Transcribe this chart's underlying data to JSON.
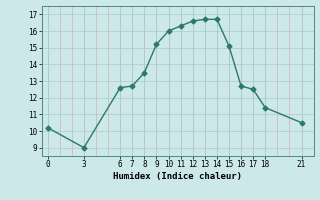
{
  "xlabel": "Humidex (Indice chaleur)",
  "x": [
    0,
    3,
    6,
    7,
    8,
    9,
    10,
    11,
    12,
    13,
    14,
    15,
    16,
    17,
    18,
    21
  ],
  "y": [
    10.2,
    9.0,
    12.6,
    12.7,
    13.5,
    15.2,
    16.0,
    16.3,
    16.6,
    16.7,
    16.7,
    15.1,
    12.7,
    12.5,
    11.4,
    10.5
  ],
  "line_color": "#2a7a6a",
  "marker_size": 2.5,
  "bg_color": "#cce8e8",
  "grid_color_major": "#aacccc",
  "grid_color_pink": "#d4b0b0",
  "ylim": [
    8.5,
    17.5
  ],
  "xlim": [
    -0.5,
    22.0
  ],
  "yticks": [
    9,
    10,
    11,
    12,
    13,
    14,
    15,
    16,
    17
  ],
  "xticks": [
    0,
    3,
    6,
    7,
    8,
    9,
    10,
    11,
    12,
    13,
    14,
    15,
    16,
    17,
    18,
    21
  ],
  "tick_fontsize": 5.5,
  "label_fontsize": 6.5,
  "line_width": 1.0
}
